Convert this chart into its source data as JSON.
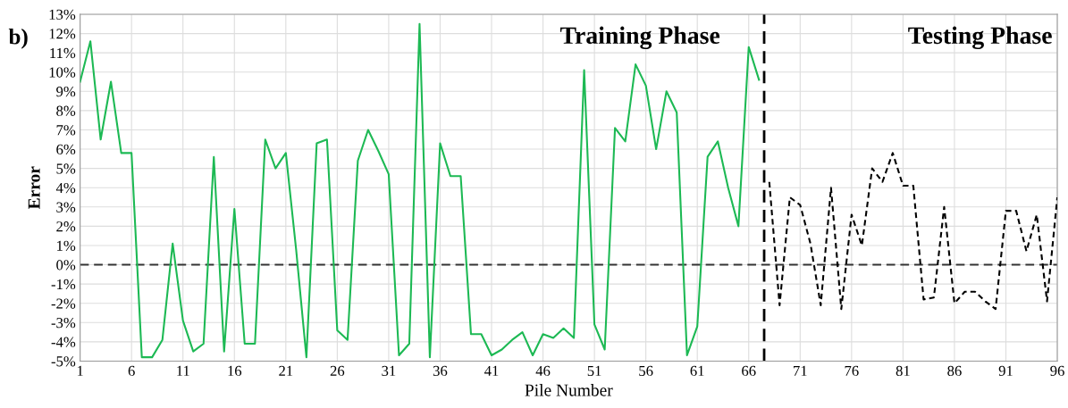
{
  "chart_data": {
    "type": "line",
    "xlabel": "Pile Number",
    "ylabel": "Error",
    "annotations": [
      "b)",
      "Training Phase",
      "Testing Phase"
    ],
    "xlim": [
      1,
      96
    ],
    "xticks": [
      1,
      6,
      11,
      16,
      21,
      26,
      31,
      36,
      41,
      46,
      51,
      56,
      61,
      66,
      71,
      76,
      81,
      86,
      91,
      96
    ],
    "ylim": [
      -5,
      13
    ],
    "yticks": [
      {
        "value": -5,
        "label": "-5%"
      },
      {
        "value": -4,
        "label": "-4%"
      },
      {
        "value": -3,
        "label": "-3%"
      },
      {
        "value": -2,
        "label": "-2%"
      },
      {
        "value": -1,
        "label": "-1%"
      },
      {
        "value": 0,
        "label": "0%"
      },
      {
        "value": 1,
        "label": "1%"
      },
      {
        "value": 2,
        "label": "2%"
      },
      {
        "value": 3,
        "label": "3%"
      },
      {
        "value": 4,
        "label": "4%"
      },
      {
        "value": 5,
        "label": "5%"
      },
      {
        "value": 6,
        "label": "6%"
      },
      {
        "value": 7,
        "label": "7%"
      },
      {
        "value": 8,
        "label": "8%"
      },
      {
        "value": 9,
        "label": "9%"
      },
      {
        "value": 10,
        "label": "10%"
      },
      {
        "value": 11,
        "label": "11%"
      },
      {
        "value": 12,
        "label": "12%"
      },
      {
        "value": 13,
        "label": "13%"
      }
    ],
    "grid": true,
    "ref_lines": [
      {
        "axis": "y",
        "value": 0,
        "label": null,
        "color": "#333333",
        "line_style": "dashed"
      },
      {
        "axis": "x",
        "value": 67.5,
        "label": null,
        "color": "#000000",
        "line_style": "dashed"
      }
    ],
    "series": [
      {
        "color": "#1db954",
        "line_style": "solid",
        "x": [
          1,
          2,
          3,
          4,
          5,
          6,
          7,
          8,
          9,
          10,
          11,
          12,
          13,
          14,
          15,
          16,
          17,
          18,
          19,
          20,
          21,
          22,
          23,
          24,
          25,
          26,
          27,
          28,
          29,
          30,
          31,
          32,
          33,
          34,
          35,
          36,
          37,
          38,
          39,
          40,
          41,
          42,
          43,
          44,
          45,
          46,
          47,
          48,
          49,
          50,
          51,
          52,
          53,
          54,
          55,
          56,
          57,
          58,
          59,
          60,
          61,
          62,
          63,
          64,
          65,
          66,
          67
        ],
        "values": [
          9.5,
          11.6,
          6.5,
          9.5,
          5.8,
          5.8,
          -4.8,
          -4.8,
          -3.9,
          1.1,
          -2.9,
          -4.5,
          -4.1,
          5.6,
          -4.5,
          2.9,
          -4.1,
          -4.1,
          6.5,
          5.0,
          5.8,
          0.8,
          -4.8,
          6.3,
          6.5,
          -3.4,
          -3.9,
          5.4,
          7.0,
          5.9,
          4.7,
          -4.7,
          -4.1,
          12.5,
          -4.8,
          6.3,
          4.6,
          4.6,
          -3.6,
          -3.6,
          -4.7,
          -4.4,
          -3.9,
          -3.5,
          -4.7,
          -3.6,
          -3.8,
          -3.3,
          -3.8,
          10.1,
          -3.1,
          -4.4,
          7.1,
          6.4,
          10.4,
          9.3,
          6.0,
          9.0,
          7.9,
          -4.7,
          -3.2,
          5.6,
          6.4,
          4.0,
          2.0,
          11.3,
          9.6
        ]
      },
      {
        "color": "#000000",
        "line_style": "dotted",
        "x": [
          68,
          69,
          70,
          71,
          72,
          73,
          74,
          75,
          76,
          77,
          78,
          79,
          80,
          81,
          82,
          83,
          84,
          85,
          86,
          87,
          88,
          89,
          90,
          91,
          92,
          93,
          94,
          95,
          96
        ],
        "values": [
          4.3,
          -2.1,
          3.5,
          3.1,
          1.1,
          -2.1,
          4.0,
          -2.3,
          2.6,
          1.0,
          5.0,
          4.3,
          5.8,
          4.1,
          4.1,
          -1.8,
          -1.7,
          3.0,
          -2.0,
          -1.4,
          -1.4,
          -1.9,
          -2.3,
          2.8,
          2.8,
          0.7,
          2.6,
          -1.9,
          3.5
        ]
      }
    ]
  }
}
